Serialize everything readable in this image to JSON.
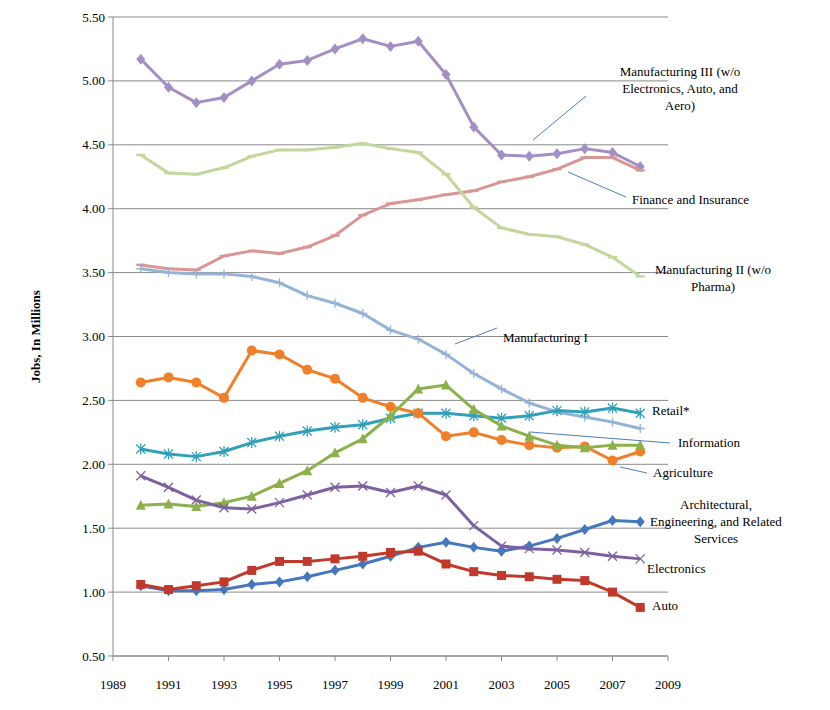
{
  "chart_data": {
    "type": "line",
    "y_label": "Jobs, In Millions",
    "grid": true,
    "x": [
      1990,
      1991,
      1992,
      1993,
      1994,
      1995,
      1996,
      1997,
      1998,
      1999,
      2000,
      2001,
      2002,
      2003,
      2004,
      2005,
      2006,
      2007,
      2008
    ],
    "xlim": [
      1989,
      2009
    ],
    "xticks": [
      1989,
      1991,
      1993,
      1995,
      1997,
      1999,
      2001,
      2003,
      2005,
      2007,
      2009
    ],
    "ylim": [
      0.5,
      5.5
    ],
    "yticks": [
      {
        "value": 0.5,
        "label": "0.50"
      },
      {
        "value": 1,
        "label": "1.00"
      },
      {
        "value": 1.5,
        "label": "1.50"
      },
      {
        "value": 2,
        "label": "2.00"
      },
      {
        "value": 2.5,
        "label": "2.50"
      },
      {
        "value": 3,
        "label": "3.00"
      },
      {
        "value": 3.5,
        "label": "3.50"
      },
      {
        "value": 4,
        "label": "4.00"
      },
      {
        "value": 4.5,
        "label": "4.50"
      },
      {
        "value": 5,
        "label": "5.00"
      },
      {
        "value": 5.5,
        "label": "5.50"
      }
    ],
    "series": [
      {
        "name": "Manufacturing III (w/o Electronics, Auto, and Aero)",
        "color": "#a38fc6",
        "marker": "diamond",
        "values": [
          5.17,
          4.95,
          4.83,
          4.87,
          5.0,
          5.13,
          5.16,
          5.25,
          5.33,
          5.27,
          5.31,
          5.05,
          4.64,
          4.42,
          4.41,
          4.43,
          4.47,
          4.44,
          4.33
        ]
      },
      {
        "name": "Finance and Insurance",
        "color": "#d99694",
        "marker": "dash",
        "values": [
          3.56,
          3.53,
          3.52,
          3.63,
          3.67,
          3.65,
          3.7,
          3.79,
          3.95,
          4.04,
          4.07,
          4.11,
          4.14,
          4.21,
          4.25,
          4.31,
          4.4,
          4.4,
          4.3
        ]
      },
      {
        "name": "Manufacturing II (w/o Pharma)",
        "color": "#c3d69b",
        "marker": "dash",
        "values": [
          4.42,
          4.28,
          4.27,
          4.32,
          4.41,
          4.46,
          4.46,
          4.48,
          4.51,
          4.47,
          4.44,
          4.27,
          4.01,
          3.85,
          3.8,
          3.78,
          3.72,
          3.62,
          3.47
        ]
      },
      {
        "name": "Manufacturing I",
        "color": "#95b3d7",
        "marker": "plus",
        "values": [
          3.53,
          3.5,
          3.49,
          3.49,
          3.47,
          3.42,
          3.32,
          3.26,
          3.18,
          3.05,
          2.98,
          2.86,
          2.71,
          2.59,
          2.48,
          2.41,
          2.37,
          2.33,
          2.28
        ]
      },
      {
        "name": "Retail*",
        "color": "#31a0b8",
        "marker": "asterisk",
        "values": [
          2.12,
          2.08,
          2.06,
          2.1,
          2.17,
          2.22,
          2.26,
          2.29,
          2.31,
          2.36,
          2.4,
          2.4,
          2.38,
          2.36,
          2.38,
          2.42,
          2.41,
          2.44,
          2.4
        ]
      },
      {
        "name": "Information",
        "color": "#f07f2a",
        "marker": "circle",
        "values": [
          2.64,
          2.68,
          2.64,
          2.52,
          2.89,
          2.86,
          2.74,
          2.67,
          2.52,
          2.45,
          2.4,
          2.22,
          2.25,
          2.19,
          2.15,
          2.13,
          2.14,
          2.03,
          2.1
        ]
      },
      {
        "name": "Agriculture",
        "color": "#8cb04a",
        "marker": "triangle",
        "values": [
          1.68,
          1.69,
          1.67,
          1.7,
          1.75,
          1.85,
          1.95,
          2.09,
          2.2,
          2.38,
          2.59,
          2.62,
          2.43,
          2.3,
          2.22,
          2.15,
          2.13,
          2.15,
          2.15
        ]
      },
      {
        "name": "Architectural, Engineering, and Related Services",
        "color": "#4477bb",
        "marker": "diamond",
        "values": [
          1.05,
          1.01,
          1.01,
          1.02,
          1.06,
          1.08,
          1.12,
          1.17,
          1.22,
          1.28,
          1.35,
          1.39,
          1.35,
          1.32,
          1.36,
          1.42,
          1.49,
          1.56,
          1.55
        ]
      },
      {
        "name": "Electronics",
        "color": "#7d60a0",
        "marker": "x",
        "values": [
          1.91,
          1.82,
          1.72,
          1.66,
          1.65,
          1.7,
          1.76,
          1.82,
          1.83,
          1.78,
          1.83,
          1.76,
          1.52,
          1.36,
          1.34,
          1.33,
          1.31,
          1.28,
          1.26
        ]
      },
      {
        "name": "Auto",
        "color": "#c0392b",
        "marker": "square",
        "values": [
          1.06,
          1.02,
          1.05,
          1.08,
          1.17,
          1.24,
          1.24,
          1.26,
          1.28,
          1.31,
          1.32,
          1.22,
          1.16,
          1.13,
          1.12,
          1.1,
          1.09,
          1.0,
          0.88
        ]
      }
    ]
  }
}
